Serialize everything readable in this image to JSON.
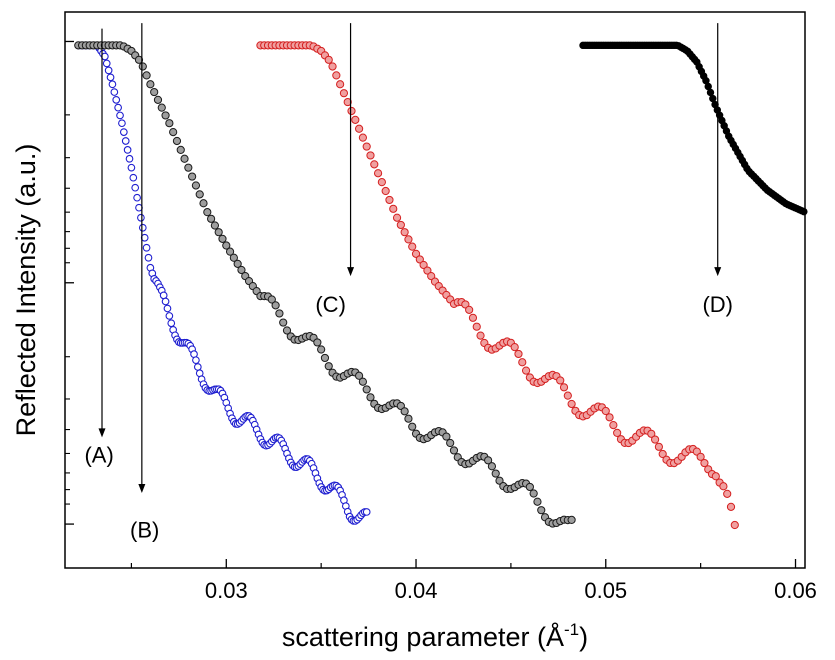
{
  "chart_data": {
    "type": "scatter",
    "title": "",
    "xlabel_main": "scattering parameter (Å",
    "xlabel_sup": "-1",
    "xlabel_close": ")",
    "ylabel": "Reflected Intensity (a.u.)",
    "xlim": [
      0.0215,
      0.0605
    ],
    "ylim": [
      0.0,
      1.0
    ],
    "y_scale": "log",
    "x_ticks": [
      0.03,
      0.04,
      0.05,
      0.06
    ],
    "x_tick_labels": [
      "0.03",
      "0.04",
      "0.05",
      "0.06"
    ],
    "grid": false,
    "legend": "none",
    "colors": {
      "A": "#1f1fd0",
      "B_fill": "#9e9e9e",
      "C_fill": "#f0a0a0",
      "C_edge": "#d42020",
      "D": "#000000"
    },
    "series": [
      {
        "id": "A",
        "marker": "open-circle",
        "x_range": [
          0.0222,
          0.0374
        ],
        "step": 0.0001,
        "pts": [
          [
            0.0222,
            0.94
          ],
          [
            0.0232,
            0.94
          ],
          [
            0.0236,
            0.92
          ],
          [
            0.024,
            0.87
          ],
          [
            0.0245,
            0.8
          ],
          [
            0.025,
            0.72
          ],
          [
            0.0255,
            0.63
          ],
          [
            0.026,
            0.54
          ],
          [
            0.0265,
            0.49
          ],
          [
            0.0275,
            0.42
          ],
          [
            0.0285,
            0.36
          ],
          [
            0.0295,
            0.31
          ],
          [
            0.0305,
            0.275
          ],
          [
            0.0315,
            0.25
          ],
          [
            0.0325,
            0.225
          ],
          [
            0.0335,
            0.2
          ],
          [
            0.0345,
            0.175
          ],
          [
            0.0355,
            0.145
          ],
          [
            0.0365,
            0.105
          ],
          [
            0.0374,
            0.085
          ]
        ],
        "osc_start": 0.0262,
        "osc_period": 0.00155,
        "osc_amp": 0.016
      },
      {
        "id": "B",
        "marker": "filled-circle",
        "x_range": [
          0.0222,
          0.0482
        ],
        "step": 0.0002,
        "pts": [
          [
            0.0222,
            0.94
          ],
          [
            0.0245,
            0.94
          ],
          [
            0.025,
            0.93
          ],
          [
            0.0255,
            0.91
          ],
          [
            0.026,
            0.87
          ],
          [
            0.027,
            0.8
          ],
          [
            0.028,
            0.72
          ],
          [
            0.029,
            0.64
          ],
          [
            0.03,
            0.58
          ],
          [
            0.031,
            0.525
          ],
          [
            0.032,
            0.48
          ],
          [
            0.033,
            0.445
          ],
          [
            0.034,
            0.415
          ],
          [
            0.035,
            0.385
          ],
          [
            0.036,
            0.355
          ],
          [
            0.037,
            0.33
          ],
          [
            0.038,
            0.305
          ],
          [
            0.039,
            0.28
          ],
          [
            0.04,
            0.255
          ],
          [
            0.041,
            0.235
          ],
          [
            0.042,
            0.215
          ],
          [
            0.043,
            0.195
          ],
          [
            0.044,
            0.175
          ],
          [
            0.045,
            0.155
          ],
          [
            0.046,
            0.13
          ],
          [
            0.047,
            0.1
          ],
          [
            0.048,
            0.07
          ]
        ],
        "osc_start": 0.0318,
        "osc_period": 0.00225,
        "osc_amp": 0.017
      },
      {
        "id": "C",
        "marker": "filled-circle",
        "x_range": [
          0.0318,
          0.0568
        ],
        "step": 0.0002,
        "pts": [
          [
            0.0318,
            0.94
          ],
          [
            0.0345,
            0.94
          ],
          [
            0.035,
            0.93
          ],
          [
            0.0355,
            0.91
          ],
          [
            0.036,
            0.87
          ],
          [
            0.037,
            0.79
          ],
          [
            0.038,
            0.71
          ],
          [
            0.039,
            0.63
          ],
          [
            0.04,
            0.565
          ],
          [
            0.041,
            0.515
          ],
          [
            0.042,
            0.475
          ],
          [
            0.043,
            0.44
          ],
          [
            0.044,
            0.41
          ],
          [
            0.045,
            0.385
          ],
          [
            0.046,
            0.36
          ],
          [
            0.047,
            0.335
          ],
          [
            0.048,
            0.31
          ],
          [
            0.049,
            0.285
          ],
          [
            0.05,
            0.265
          ],
          [
            0.051,
            0.245
          ],
          [
            0.052,
            0.23
          ],
          [
            0.053,
            0.215
          ],
          [
            0.054,
            0.2
          ],
          [
            0.055,
            0.19
          ],
          [
            0.0558,
            0.185
          ],
          [
            0.0563,
            0.15
          ],
          [
            0.0566,
            0.1
          ],
          [
            0.0568,
            0.06
          ]
        ],
        "osc_start": 0.042,
        "osc_period": 0.0024,
        "osc_amp": 0.02
      },
      {
        "id": "D",
        "marker": "filled-circle",
        "x_range": [
          0.0488,
          0.0605
        ],
        "step": 0.00012,
        "pts": [
          [
            0.0488,
            0.94
          ],
          [
            0.0538,
            0.94
          ],
          [
            0.0543,
            0.93
          ],
          [
            0.0548,
            0.91
          ],
          [
            0.0553,
            0.875
          ],
          [
            0.0558,
            0.83
          ],
          [
            0.0565,
            0.775
          ],
          [
            0.0575,
            0.715
          ],
          [
            0.0585,
            0.68
          ],
          [
            0.0595,
            0.655
          ],
          [
            0.0605,
            0.64
          ]
        ],
        "osc_start": 0.1,
        "osc_period": 0.001,
        "osc_amp": 0
      }
    ],
    "annotations": [
      {
        "label": "(A)",
        "x": 0.02345,
        "y_top": 0.97,
        "y_tip": 0.235,
        "text_x": 0.0233,
        "text_y": 0.19
      },
      {
        "label": "(B)",
        "x": 0.02555,
        "y_top": 0.98,
        "y_tip": 0.135,
        "text_x": 0.0257,
        "text_y": 0.055
      },
      {
        "label": "(C)",
        "x": 0.03655,
        "y_top": 0.98,
        "y_tip": 0.525,
        "text_x": 0.0355,
        "text_y": 0.46
      },
      {
        "label": "(D)",
        "x": 0.0559,
        "y_top": 0.98,
        "y_tip": 0.525,
        "text_x": 0.0559,
        "text_y": 0.46
      }
    ]
  }
}
